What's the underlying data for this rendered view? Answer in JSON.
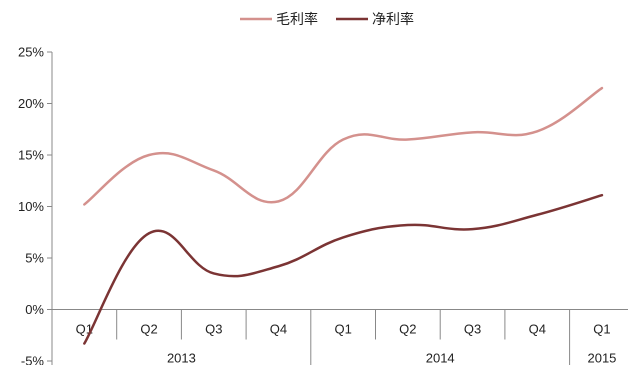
{
  "chart_data": {
    "type": "line",
    "categories": [
      "Q1",
      "Q2",
      "Q3",
      "Q4",
      "Q1",
      "Q2",
      "Q3",
      "Q4",
      "Q1"
    ],
    "year_groups": [
      {
        "label": "2013",
        "start": 0,
        "end": 3
      },
      {
        "label": "2014",
        "start": 4,
        "end": 7
      },
      {
        "label": "2015",
        "start": 8,
        "end": 8
      }
    ],
    "series": [
      {
        "name": "毛利率",
        "color": "#d4918d",
        "values": [
          10.2,
          15.0,
          13.5,
          10.5,
          16.5,
          16.5,
          17.2,
          17.3,
          21.5
        ]
      },
      {
        "name": "净利率",
        "color": "#7b3434",
        "values": [
          -3.3,
          7.4,
          3.5,
          4.2,
          7.0,
          8.2,
          7.8,
          9.2,
          11.1
        ]
      }
    ],
    "ylim": [
      -5,
      25
    ],
    "yticks": [
      -5,
      0,
      5,
      10,
      15,
      20,
      25
    ],
    "ytick_labels": [
      "-5%",
      "0%",
      "5%",
      "10%",
      "15%",
      "20%",
      "25%"
    ],
    "legend_position": "top-center",
    "grid": false,
    "title": "",
    "xlabel": "",
    "ylabel": ""
  }
}
